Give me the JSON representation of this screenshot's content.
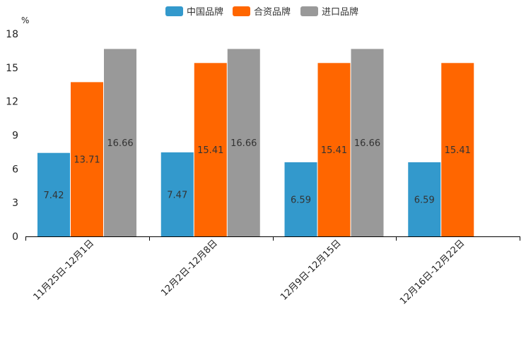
{
  "chart_data": {
    "type": "bar",
    "ylabel": "%",
    "ylim": [
      0,
      18
    ],
    "yticks": [
      0,
      3,
      6,
      9,
      12,
      15,
      18
    ],
    "categories": [
      "11月25日-12月1日",
      "12月2日-12月8日",
      "12月9日-12月15日",
      "12月16日-12月22日"
    ],
    "series": [
      {
        "name": "中国品牌",
        "color": "#3399cc",
        "values": [
          7.42,
          7.47,
          6.59,
          6.59
        ]
      },
      {
        "name": "合资品牌",
        "color": "#ff6600",
        "values": [
          13.71,
          15.41,
          15.41,
          15.41
        ]
      },
      {
        "name": "进口品牌",
        "color": "#999999",
        "values": [
          16.66,
          16.66,
          16.66,
          null
        ]
      }
    ],
    "legend_position": "top-center",
    "grid": false
  }
}
